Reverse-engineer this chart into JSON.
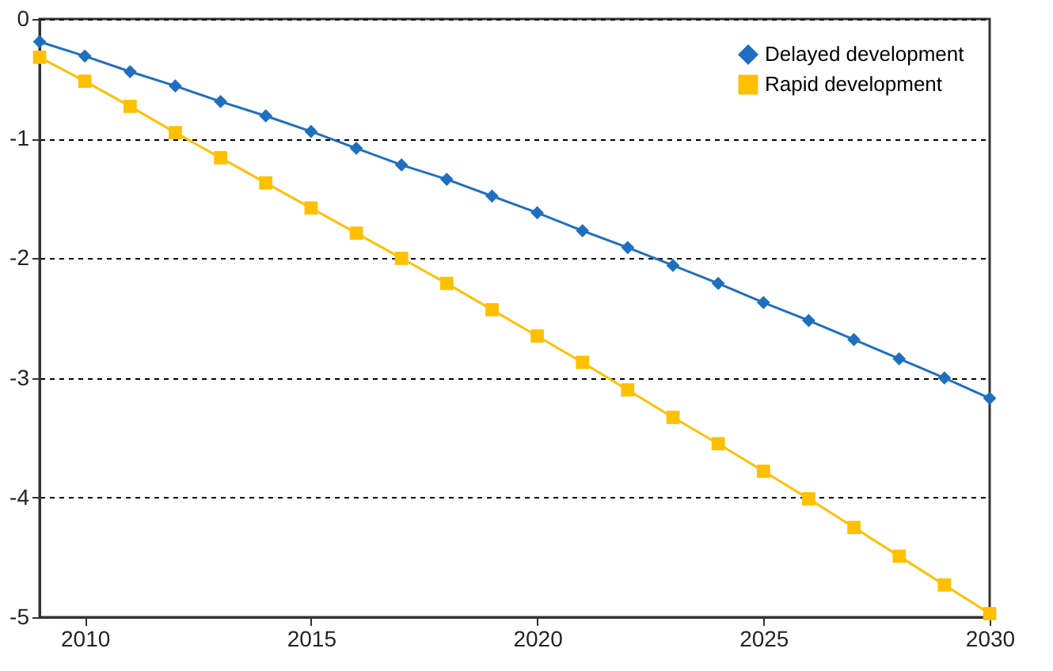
{
  "chart_data": {
    "type": "line",
    "x": [
      2009,
      2010,
      2011,
      2012,
      2013,
      2014,
      2015,
      2016,
      2017,
      2018,
      2019,
      2020,
      2021,
      2022,
      2023,
      2024,
      2025,
      2026,
      2027,
      2028,
      2029,
      2030
    ],
    "xlim": [
      2009,
      2030
    ],
    "xticks": [
      2010,
      2015,
      2020,
      2025,
      2030
    ],
    "ylim": [
      -5,
      0
    ],
    "yticks": [
      -5,
      -4,
      -3,
      -2,
      -1,
      0
    ],
    "grid": "y",
    "legend": "top right",
    "series": [
      {
        "name": "Delayed development",
        "color": "#1f6fbf",
        "marker": "diamond",
        "values": [
          -0.19,
          -0.31,
          -0.44,
          -0.56,
          -0.69,
          -0.81,
          -0.94,
          -1.08,
          -1.22,
          -1.34,
          -1.48,
          -1.62,
          -1.77,
          -1.91,
          -2.06,
          -2.21,
          -2.37,
          -2.52,
          -2.68,
          -2.84,
          -3.0,
          -3.17
        ]
      },
      {
        "name": "Rapid development",
        "color": "#ffc000",
        "marker": "square",
        "values": [
          -0.32,
          -0.52,
          -0.73,
          -0.95,
          -1.16,
          -1.37,
          -1.58,
          -1.79,
          -2.0,
          -2.21,
          -2.43,
          -2.65,
          -2.87,
          -3.1,
          -3.33,
          -3.55,
          -3.78,
          -4.01,
          -4.25,
          -4.49,
          -4.73,
          -4.97
        ]
      }
    ]
  }
}
